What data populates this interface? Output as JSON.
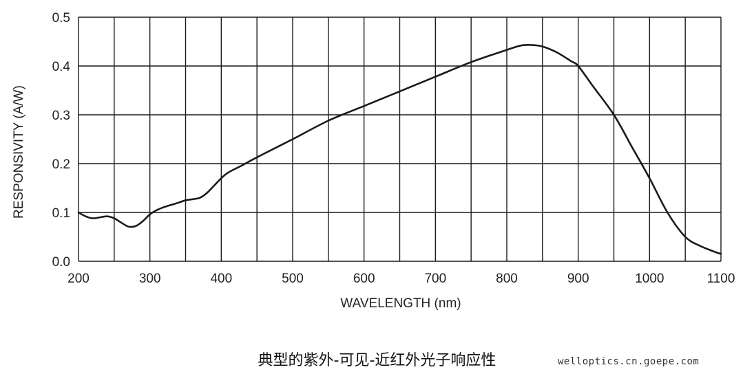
{
  "chart_data": {
    "type": "line",
    "xlabel": "WAVELENGTH (nm)",
    "ylabel": "RESPONSIVITY (A/W)",
    "xlim": [
      200,
      1100
    ],
    "ylim": [
      0.0,
      0.5
    ],
    "x_ticks": [
      200,
      300,
      400,
      500,
      600,
      700,
      800,
      900,
      1000,
      1100
    ],
    "y_ticks": [
      "0.0",
      "0.1",
      "0.2",
      "0.3",
      "0.4",
      "0.5"
    ],
    "grid": true,
    "x_grid_step": 50,
    "y_grid_step": 0.1,
    "series": [
      {
        "x": [
          200,
          210,
          220,
          230,
          240,
          250,
          260,
          270,
          280,
          290,
          300,
          310,
          320,
          340,
          350,
          360,
          370,
          380,
          390,
          400,
          410,
          430,
          450,
          500,
          550,
          600,
          650,
          700,
          750,
          800,
          820,
          835,
          850,
          870,
          890,
          900,
          920,
          950,
          975,
          1000,
          1025,
          1050,
          1070,
          1090,
          1100
        ],
        "y": [
          0.1,
          0.092,
          0.088,
          0.09,
          0.092,
          0.088,
          0.079,
          0.071,
          0.072,
          0.082,
          0.096,
          0.105,
          0.111,
          0.12,
          0.125,
          0.127,
          0.13,
          0.14,
          0.155,
          0.17,
          0.182,
          0.197,
          0.213,
          0.25,
          0.288,
          0.318,
          0.348,
          0.378,
          0.408,
          0.433,
          0.442,
          0.443,
          0.44,
          0.428,
          0.41,
          0.4,
          0.36,
          0.3,
          0.235,
          0.17,
          0.1,
          0.05,
          0.032,
          0.02,
          0.015
        ]
      }
    ],
    "title": "典型的紫外-可见-近红外光子响应性"
  },
  "watermark": "welloptics.cn.goepe.com"
}
